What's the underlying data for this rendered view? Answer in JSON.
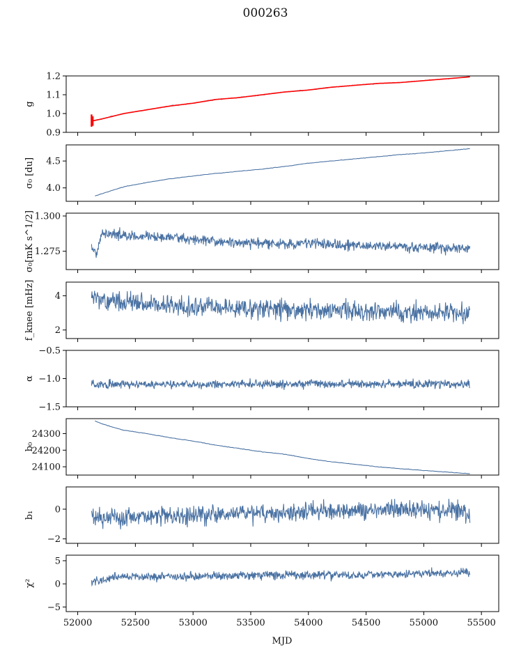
{
  "figure": {
    "title": "000263",
    "xlabel": "MJD"
  },
  "colors": {
    "series": "#4a72a3",
    "fit": "#ff0000",
    "axis": "#000000"
  },
  "chart_data": [
    {
      "type": "line",
      "name": "g",
      "ylabel": "g",
      "xlim": [
        51900,
        55650
      ],
      "ylim": [
        0.9,
        1.2
      ],
      "yticks": [
        0.9,
        1.0,
        1.1,
        1.2
      ],
      "ytick_labels": [
        "0.9",
        "1.0",
        "1.1",
        "1.2"
      ],
      "series": [
        {
          "name": "g",
          "x": [
            52120,
            52200,
            52400,
            52600,
            52800,
            53000,
            53200,
            53400,
            53600,
            53800,
            54000,
            54200,
            54400,
            54600,
            54800,
            55000,
            55200,
            55400
          ],
          "values": [
            0.96,
            0.97,
            1.0,
            1.02,
            1.04,
            1.055,
            1.075,
            1.085,
            1.1,
            1.115,
            1.125,
            1.14,
            1.15,
            1.16,
            1.165,
            1.175,
            1.185,
            1.195
          ]
        },
        {
          "name": "g fit",
          "x": [
            52120,
            52200,
            52400,
            52600,
            52800,
            53000,
            53200,
            53400,
            53600,
            53800,
            54000,
            54200,
            54400,
            54600,
            54800,
            55000,
            55200,
            55400
          ],
          "values": [
            0.96,
            0.97,
            1.0,
            1.02,
            1.04,
            1.055,
            1.075,
            1.085,
            1.1,
            1.115,
            1.125,
            1.14,
            1.15,
            1.16,
            1.165,
            1.175,
            1.185,
            1.195
          ]
        }
      ]
    },
    {
      "type": "line",
      "name": "sigma0-du",
      "ylabel": "σ₀ [du]",
      "xlim": [
        51900,
        55650
      ],
      "ylim": [
        3.75,
        4.8
      ],
      "yticks": [
        4.0,
        4.5
      ],
      "ytick_labels": [
        "4.0",
        "4.5"
      ],
      "series": [
        {
          "name": "σ₀",
          "x": [
            52150,
            52250,
            52400,
            52600,
            52800,
            53000,
            53200,
            53400,
            53600,
            53800,
            54000,
            54200,
            54400,
            54600,
            54800,
            55000,
            55200,
            55400
          ],
          "values": [
            3.85,
            3.92,
            4.02,
            4.1,
            4.17,
            4.22,
            4.27,
            4.31,
            4.35,
            4.4,
            4.46,
            4.5,
            4.54,
            4.58,
            4.62,
            4.65,
            4.69,
            4.73
          ]
        }
      ]
    },
    {
      "type": "line",
      "name": "sigma0-mks",
      "ylabel": "σ₀[mK s^1/2]",
      "xlim": [
        51900,
        55650
      ],
      "ylim": [
        1.262,
        1.302
      ],
      "yticks": [
        1.275,
        1.3
      ],
      "ytick_labels": [
        "1.275",
        "1.300"
      ],
      "series": [
        {
          "name": "σ₀ [mK s^1/2]",
          "x": [
            52120,
            52160,
            52200,
            52300,
            52500,
            52800,
            53000,
            53200,
            53500,
            53800,
            54000,
            54300,
            54600,
            54900,
            55100,
            55300,
            55400
          ],
          "values": [
            1.278,
            1.271,
            1.286,
            1.287,
            1.285,
            1.285,
            1.283,
            1.282,
            1.281,
            1.28,
            1.281,
            1.279,
            1.279,
            1.278,
            1.278,
            1.277,
            1.277
          ]
        }
      ]
    },
    {
      "type": "line",
      "name": "f-knee",
      "ylabel": "f_knee [mHz]",
      "xlim": [
        51900,
        55650
      ],
      "ylim": [
        1.5,
        4.8
      ],
      "yticks": [
        2,
        4
      ],
      "ytick_labels": [
        "2",
        "4"
      ],
      "series": [
        {
          "name": "f_knee",
          "x": [
            52120,
            52300,
            52600,
            52900,
            53200,
            53500,
            53800,
            54100,
            54400,
            54700,
            55000,
            55300,
            55400
          ],
          "values": [
            3.9,
            3.7,
            3.5,
            3.4,
            3.3,
            3.3,
            3.2,
            3.2,
            3.1,
            3.1,
            3.0,
            3.0,
            2.9
          ]
        }
      ]
    },
    {
      "type": "line",
      "name": "alpha",
      "ylabel": "α",
      "xlim": [
        51900,
        55650
      ],
      "ylim": [
        -1.5,
        -0.5
      ],
      "yticks": [
        -1.5,
        -1.0,
        -0.5
      ],
      "ytick_labels": [
        "−1.5",
        "−1.0",
        "−0.5"
      ],
      "series": [
        {
          "name": "α",
          "x": [
            52120,
            52500,
            53000,
            53500,
            54000,
            54500,
            55000,
            55400
          ],
          "values": [
            -1.1,
            -1.1,
            -1.1,
            -1.1,
            -1.1,
            -1.1,
            -1.1,
            -1.1
          ]
        }
      ]
    },
    {
      "type": "line",
      "name": "b0",
      "ylabel": "b₀",
      "xlim": [
        51900,
        55650
      ],
      "ylim": [
        24050,
        24390
      ],
      "yticks": [
        24100,
        24200,
        24300
      ],
      "ytick_labels": [
        "24100",
        "24200",
        "24300"
      ],
      "series": [
        {
          "name": "b₀",
          "x": [
            52150,
            52250,
            52400,
            52600,
            52800,
            53000,
            53200,
            53400,
            53600,
            53800,
            54000,
            54200,
            54400,
            54600,
            54800,
            55000,
            55200,
            55400
          ],
          "values": [
            24375,
            24350,
            24320,
            24300,
            24275,
            24255,
            24230,
            24210,
            24190,
            24175,
            24150,
            24130,
            24115,
            24100,
            24088,
            24078,
            24068,
            24058
          ]
        }
      ]
    },
    {
      "type": "line",
      "name": "b1",
      "ylabel": "b₁",
      "xlim": [
        51900,
        55650
      ],
      "ylim": [
        -2.3,
        1.5
      ],
      "yticks": [
        -2,
        0
      ],
      "ytick_labels": [
        "−2",
        "0"
      ],
      "series": [
        {
          "name": "b₁",
          "x": [
            52120,
            52300,
            52600,
            52900,
            53200,
            53500,
            53800,
            54100,
            54400,
            54700,
            55000,
            55300,
            55400
          ],
          "values": [
            -0.4,
            -0.6,
            -0.5,
            -0.4,
            -0.3,
            -0.3,
            -0.2,
            -0.1,
            -0.1,
            0.0,
            -0.1,
            -0.1,
            -0.3
          ]
        }
      ]
    },
    {
      "type": "line",
      "name": "chi2",
      "ylabel": "χ²",
      "xlim": [
        51900,
        55650
      ],
      "ylim": [
        -6,
        6.2
      ],
      "yticks": [
        -5,
        0,
        5
      ],
      "ytick_labels": [
        "−5",
        "0",
        "5"
      ],
      "xticks": [
        52000,
        52500,
        53000,
        53500,
        54000,
        54500,
        55000,
        55500
      ],
      "xtick_labels": [
        "52000",
        "52500",
        "53000",
        "53500",
        "54000",
        "54500",
        "55000",
        "55500"
      ],
      "series": [
        {
          "name": "χ²",
          "x": [
            52120,
            52300,
            52600,
            52900,
            53200,
            53500,
            53800,
            54100,
            54400,
            54700,
            55000,
            55300,
            55400
          ],
          "values": [
            0.3,
            1.4,
            1.5,
            1.6,
            1.7,
            1.8,
            1.9,
            2.0,
            2.0,
            2.1,
            2.2,
            2.4,
            2.6
          ]
        }
      ]
    }
  ]
}
